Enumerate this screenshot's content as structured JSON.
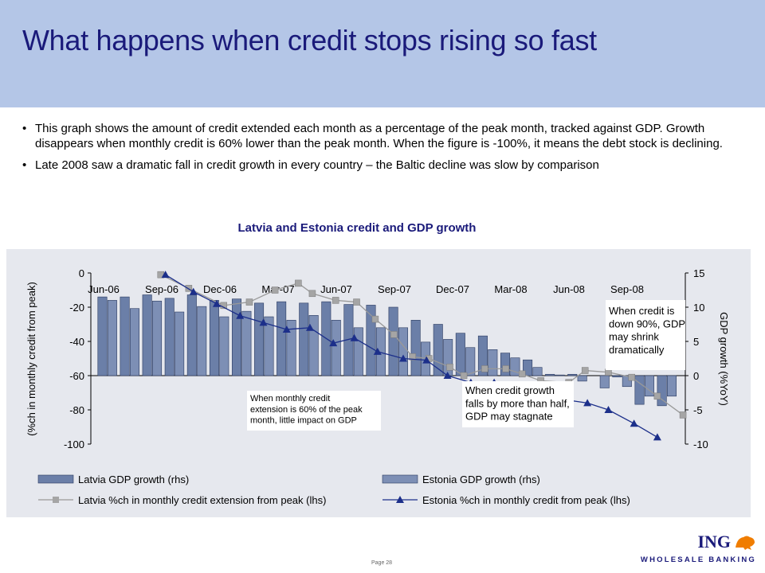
{
  "title": "What happens when credit stops rising so fast",
  "bullets": [
    "This graph shows the amount of credit extended each month as a percentage of the peak month, tracked against GDP. Growth disappears when monthly credit is 60% lower than the peak month. When the figure is -100%, it means the debt stock is declining.",
    "Late 2008 saw a dramatic fall in credit growth in every country – the Baltic decline was slow by comparison"
  ],
  "page": "Page 28",
  "logo": {
    "brand": "ING",
    "sub": "WHOLESALE BANKING"
  },
  "colors": {
    "header": "#b4c6e7",
    "title": "#1a1a7a",
    "latvia_bar": "#6b7fa8",
    "estonia_bar": "#7d8fb5",
    "latvia_line": "#999999",
    "estonia_line": "#1c2f8a"
  },
  "chart_data": {
    "type": "bar+line",
    "title": "Latvia and Estonia credit and GDP growth",
    "ylabel_left": "(%ch in monthly credit from peak)",
    "ylabel_right": "GDP growth (%YoY)",
    "ylim_left": [
      -100,
      0
    ],
    "ylim_right": [
      -10,
      15
    ],
    "yticks_left": [
      "0",
      "-20",
      "-40",
      "-60",
      "-80",
      "-100"
    ],
    "yticks_right": [
      "15",
      "10",
      "5",
      "0",
      "-5",
      "-10"
    ],
    "x_tick_labels": [
      "Jun-06",
      "Sep-06",
      "Dec-06",
      "Mar-07",
      "Jun-07",
      "Sep-07",
      "Dec-07",
      "Mar-08",
      "Jun-08",
      "Sep-08"
    ],
    "months": 30,
    "series": [
      {
        "name": "Latvia GDP growth (rhs)",
        "type": "bar",
        "axis": "right",
        "values": [
          11.5,
          null,
          null,
          11.8,
          null,
          null,
          11.8,
          null,
          null,
          11.2,
          null,
          null,
          11.2,
          null,
          null,
          10.9,
          null,
          null,
          10.3,
          null,
          null,
          8.1,
          null,
          null,
          3.3,
          null,
          null,
          0.2,
          null,
          null,
          -4.2,
          null,
          null
        ]
      },
      {
        "name": "Estonia GDP growth (rhs)",
        "type": "bar",
        "axis": "right"
      },
      {
        "name": "Latvia %ch in monthly credit extension from peak (lhs)",
        "type": "line",
        "axis": "left"
      },
      {
        "name": "Estonia %ch in monthly credit from peak (lhs)",
        "type": "line",
        "axis": "left"
      }
    ],
    "latvia_gdp": [
      11.5,
      11.5,
      11.8,
      11.3,
      11.8,
      11.0,
      11.2,
      10.6,
      10.8,
      10.6,
      10.8,
      10.4,
      10.3,
      10.0,
      8.1,
      7.5,
      6.2,
      5.8,
      3.3,
      2.3,
      0.2,
      0.2,
      0.0,
      -0.2,
      -4.2,
      -4.4
    ],
    "estonia_gdp": [
      11.0,
      9.8,
      10.9,
      9.3,
      10.1,
      8.6,
      9.4,
      8.6,
      8.1,
      8.8,
      8.1,
      7.0,
      7.0,
      7.0,
      4.9,
      5.3,
      4.1,
      3.8,
      2.6,
      1.2,
      0.1,
      -0.8,
      -1.8,
      -1.6,
      -3.0,
      -3.0
    ],
    "latvia_credit": [
      {
        "x": 6.0,
        "y": -1
      },
      {
        "x": 8.4,
        "y": -9
      },
      {
        "x": 11.4,
        "y": -19
      },
      {
        "x": 13.6,
        "y": -17
      },
      {
        "x": 15.8,
        "y": -10
      },
      {
        "x": 17.8,
        "y": -6
      },
      {
        "x": 19.0,
        "y": -12
      },
      {
        "x": 21.0,
        "y": -16
      },
      {
        "x": 22.8,
        "y": -17
      },
      {
        "x": 24.4,
        "y": -27
      },
      {
        "x": 26.0,
        "y": -36
      },
      {
        "x": 27.6,
        "y": -49
      },
      {
        "x": 29.0,
        "y": -50
      },
      {
        "x": 30.8,
        "y": -55
      },
      {
        "x": 32.0,
        "y": -60
      },
      {
        "x": 33.8,
        "y": -56
      },
      {
        "x": 35.6,
        "y": -56
      },
      {
        "x": 37.0,
        "y": -59
      },
      {
        "x": 38.6,
        "y": -63
      },
      {
        "x": 41.0,
        "y": -64
      },
      {
        "x": 42.4,
        "y": -57
      },
      {
        "x": 44.4,
        "y": -58
      },
      {
        "x": 46.4,
        "y": -61
      },
      {
        "x": 48.6,
        "y": -72
      },
      {
        "x": 50.8,
        "y": -83
      }
    ],
    "estonia_credit": [
      {
        "x": 6.4,
        "y": -1
      },
      {
        "x": 8.8,
        "y": -11
      },
      {
        "x": 10.8,
        "y": -18
      },
      {
        "x": 12.8,
        "y": -25
      },
      {
        "x": 14.8,
        "y": -29
      },
      {
        "x": 16.8,
        "y": -33
      },
      {
        "x": 18.8,
        "y": -32
      },
      {
        "x": 20.8,
        "y": -41
      },
      {
        "x": 22.6,
        "y": -38
      },
      {
        "x": 24.6,
        "y": -46
      },
      {
        "x": 26.8,
        "y": -50
      },
      {
        "x": 28.8,
        "y": -51
      },
      {
        "x": 30.6,
        "y": -60
      },
      {
        "x": 32.6,
        "y": -64
      },
      {
        "x": 34.6,
        "y": -64
      },
      {
        "x": 36.6,
        "y": -67
      },
      {
        "x": 38.6,
        "y": -67
      },
      {
        "x": 40.6,
        "y": -74
      },
      {
        "x": 42.6,
        "y": -76
      },
      {
        "x": 44.4,
        "y": -80
      },
      {
        "x": 46.6,
        "y": -88
      },
      {
        "x": 48.6,
        "y": -96
      }
    ],
    "annotations": [
      "When monthly credit extension is 60% of the peak month, little impact on GDP",
      "When credit growth falls by more than half, GDP may stagnate",
      "When credit is down 90%, GDP may shrink dramatically"
    ],
    "legend_placement": "bottom"
  }
}
